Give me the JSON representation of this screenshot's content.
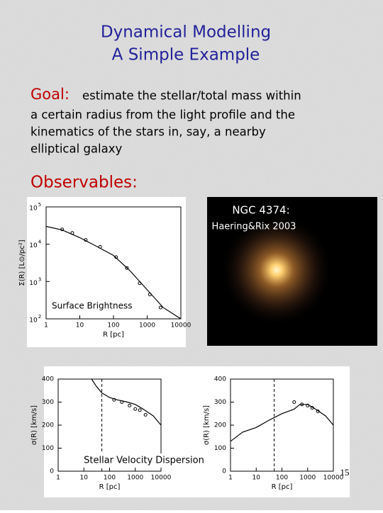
{
  "title": {
    "line1": "Dynamical Modelling",
    "line2": "A Simple Example"
  },
  "goal": {
    "label": "Goal:",
    "first_line": "estimate the stellar/total mass within",
    "more_lines": [
      "a certain radius from the light profile and the",
      "kinematics of the stars in, say, a nearby",
      "elliptical galaxy"
    ]
  },
  "observables": "Observables:",
  "surface_brightness": {
    "label": "Surface Brightness",
    "xlabel": "R [pc]",
    "ylabel": "Σ(R) [L⊙/pc²]",
    "xlog": true,
    "ylog": true,
    "xlim": [
      1,
      10000
    ],
    "ylim": [
      100,
      100000
    ],
    "xticks": [
      1,
      10,
      100,
      1000,
      10000
    ],
    "yticks": [
      {
        "value": 100,
        "base": "10",
        "exp": "2"
      },
      {
        "value": 1000,
        "base": "10",
        "exp": "3"
      },
      {
        "value": 10000,
        "base": "10",
        "exp": "4"
      },
      {
        "value": 100000,
        "base": "10",
        "exp": "5"
      }
    ],
    "model": {
      "x": [
        1,
        3,
        10,
        30,
        100,
        300,
        1000,
        3000,
        10000
      ],
      "y": [
        30000,
        24000,
        15000,
        9000,
        5000,
        2000,
        600,
        200,
        100
      ]
    },
    "observed": {
      "x": [
        3,
        6,
        15,
        40,
        120,
        250,
        600,
        1200,
        2500
      ],
      "y": [
        25000,
        20000,
        13000,
        8500,
        4500,
        2300,
        900,
        450,
        200
      ]
    }
  },
  "image": {
    "name": "NGC 4374:",
    "credit": "Haering&Rix 2003"
  },
  "velocity_dispersion": {
    "label": "Stellar Velocity Dispersion",
    "panels": [
      {
        "xlabel": "R [pc]",
        "ylabel": "σ(R) [km/s]",
        "xlog": true,
        "ylog": false,
        "xlim": [
          1,
          10000
        ],
        "ylim": [
          0,
          400
        ],
        "xticks": [
          1,
          10,
          100,
          1000,
          10000
        ],
        "yticks": [
          0,
          100,
          200,
          300,
          400
        ],
        "r_limit": 50,
        "model": {
          "x": [
            20,
            30,
            50,
            100,
            200,
            500,
            1000,
            2000,
            5000,
            10000
          ],
          "y": [
            400,
            370,
            340,
            320,
            310,
            300,
            290,
            270,
            240,
            200
          ]
        },
        "observed": {
          "x": [
            150,
            300,
            600,
            1000,
            1500,
            2500
          ],
          "y": [
            310,
            300,
            285,
            270,
            265,
            245
          ]
        }
      },
      {
        "xlabel": "R [pc]",
        "ylabel": "σ(R) [km/s]",
        "xlog": true,
        "ylog": false,
        "xlim": [
          1,
          10000
        ],
        "ylim": [
          0,
          400
        ],
        "xticks": [
          1,
          10,
          100,
          1000,
          10000
        ],
        "yticks": [
          0,
          100,
          200,
          300,
          400
        ],
        "r_limit": 50,
        "model": {
          "x": [
            1,
            3,
            10,
            30,
            100,
            300,
            500,
            1000,
            2000,
            5000,
            10000
          ],
          "y": [
            130,
            170,
            190,
            220,
            250,
            270,
            290,
            290,
            270,
            240,
            200
          ]
        },
        "observed": {
          "x": [
            300,
            600,
            1000,
            1500,
            2500
          ],
          "y": [
            300,
            290,
            285,
            275,
            260
          ]
        }
      }
    ]
  },
  "page_number": "15"
}
